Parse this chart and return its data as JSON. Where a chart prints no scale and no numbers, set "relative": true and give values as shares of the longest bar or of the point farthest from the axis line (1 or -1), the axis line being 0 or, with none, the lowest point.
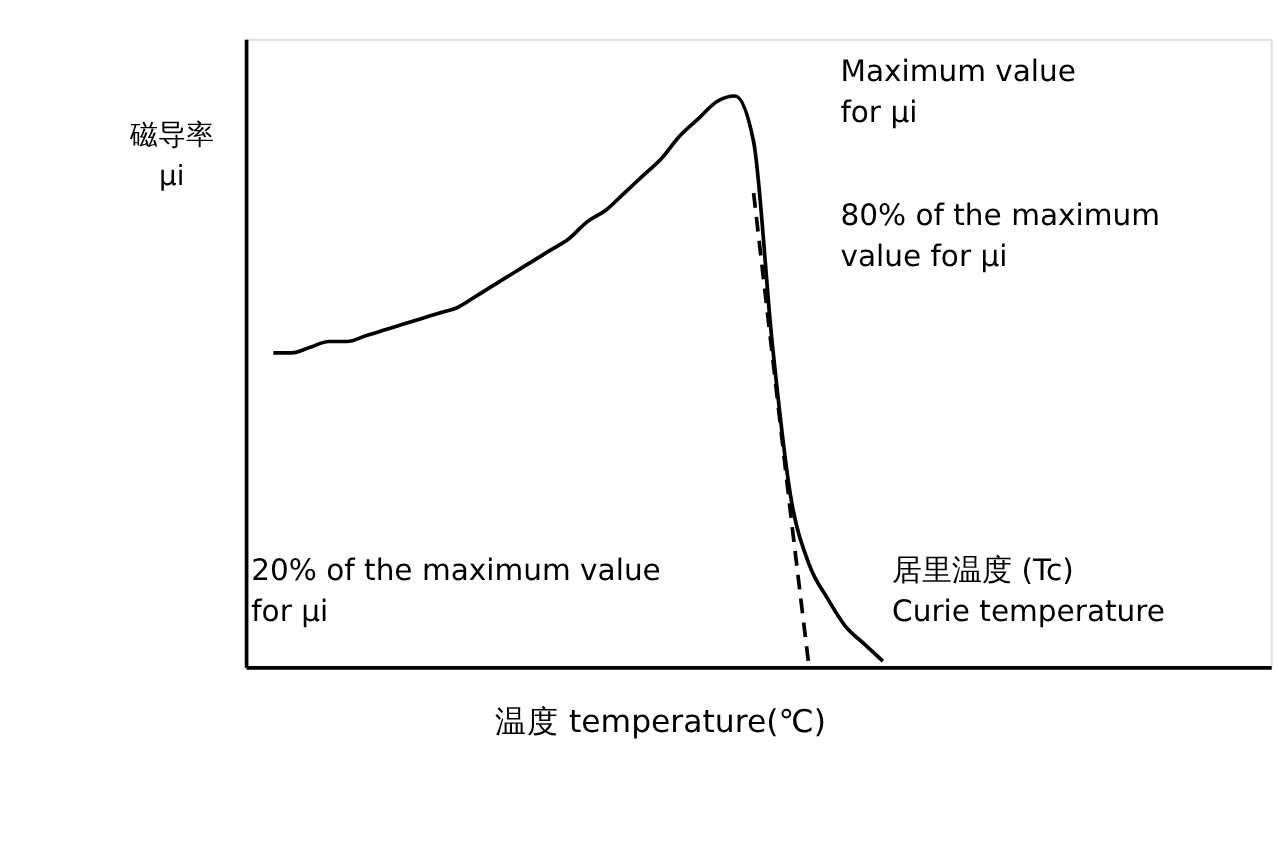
{
  "chart_data": {
    "type": "line",
    "relative": true,
    "xlabel": "温度  temperature(℃)",
    "ylabel": "磁导率\nμi",
    "categories": [
      null,
      null,
      null,
      null,
      null,
      null,
      null,
      null,
      null,
      null,
      null,
      null,
      null,
      null,
      null,
      null,
      null,
      null,
      null,
      null,
      null,
      null,
      null,
      null,
      null,
      null,
      null,
      null,
      null,
      null,
      null,
      null,
      null,
      null
    ],
    "series": [
      {
        "color": "#000000",
        "line_style": "solid",
        "values": [
          0.55,
          0.55,
          0.56,
          0.57,
          0.57,
          0.58,
          0.59,
          0.6,
          0.61,
          0.62,
          0.63,
          0.65,
          0.67,
          0.69,
          0.71,
          0.73,
          0.75,
          0.78,
          0.8,
          0.83,
          0.86,
          0.89,
          0.93,
          0.96,
          0.99,
          1.0,
          0.92,
          0.57,
          0.3,
          0.18,
          0.12,
          0.07,
          0.04,
          0.01
        ]
      },
      {
        "color": "#000000",
        "line_style": "dashed",
        "values": [
          null,
          null,
          null,
          null,
          null,
          null,
          null,
          null,
          null,
          null,
          null,
          null,
          null,
          null,
          null,
          null,
          null,
          null,
          null,
          null,
          null,
          null,
          null,
          null,
          null,
          null,
          0.83,
          0.55,
          0.27,
          0.0,
          null,
          null,
          null,
          null
        ]
      }
    ],
    "annotations": [
      "Maximum value\nfor μi",
      "80% of the maximum\nvalue for μi",
      "20% of the maximum value\nfor μi",
      "居里温度    (Tc)\nCurie temperature"
    ],
    "marker": "none"
  }
}
